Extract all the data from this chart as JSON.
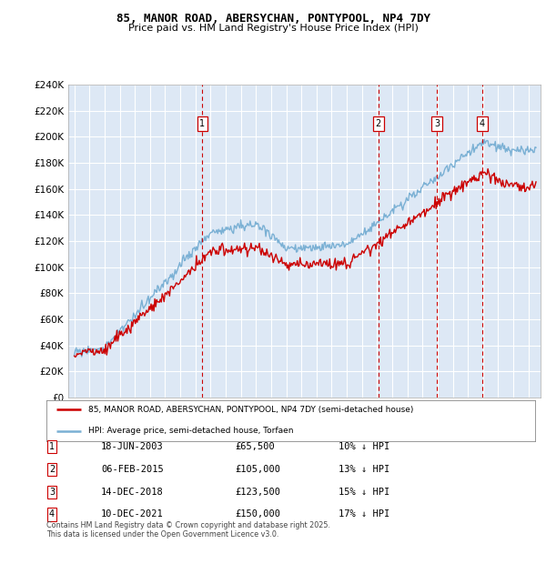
{
  "title": "85, MANOR ROAD, ABERSYCHAN, PONTYPOOL, NP4 7DY",
  "subtitle": "Price paid vs. HM Land Registry's House Price Index (HPI)",
  "red_label": "85, MANOR ROAD, ABERSYCHAN, PONTYPOOL, NP4 7DY (semi-detached house)",
  "blue_label": "HPI: Average price, semi-detached house, Torfaen",
  "ylim": [
    0,
    240000
  ],
  "ytick_step": 20000,
  "sales": [
    {
      "num": 1,
      "date": "18-JUN-2003",
      "price": 65500,
      "pct": "10%",
      "x_year": 2003.46
    },
    {
      "num": 2,
      "date": "06-FEB-2015",
      "price": 105000,
      "pct": "13%",
      "x_year": 2015.09
    },
    {
      "num": 3,
      "date": "14-DEC-2018",
      "price": 123500,
      "pct": "15%",
      "x_year": 2018.95
    },
    {
      "num": 4,
      "date": "10-DEC-2021",
      "price": 150000,
      "pct": "17%",
      "x_year": 2021.95
    }
  ],
  "footnote1": "Contains HM Land Registry data © Crown copyright and database right 2025.",
  "footnote2": "This data is licensed under the Open Government Licence v3.0.",
  "plot_bg": "#dde8f5",
  "grid_color": "#ffffff",
  "red_color": "#cc0000",
  "blue_color": "#7ab0d4",
  "xlim_left": 1994.6,
  "xlim_right": 2025.8
}
